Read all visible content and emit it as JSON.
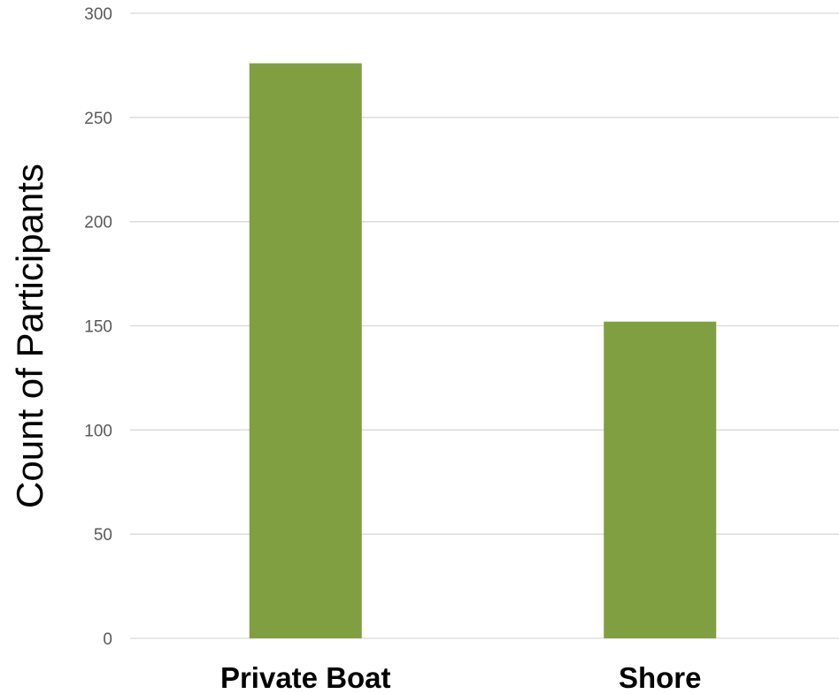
{
  "chart_data": {
    "type": "bar",
    "categories": [
      "Private Boat",
      "Shore"
    ],
    "values": [
      276,
      152
    ],
    "title": "",
    "xlabel": "",
    "ylabel": "Count of Participants",
    "ylim": [
      0,
      300
    ],
    "yticks": [
      0,
      50,
      100,
      150,
      200,
      250,
      300
    ],
    "grid": true,
    "legend": "none",
    "colors": {
      "bar": "#7F9F40",
      "grid": "#D9D9D9",
      "tick_text": "#595959",
      "label_text": "#000000"
    }
  }
}
